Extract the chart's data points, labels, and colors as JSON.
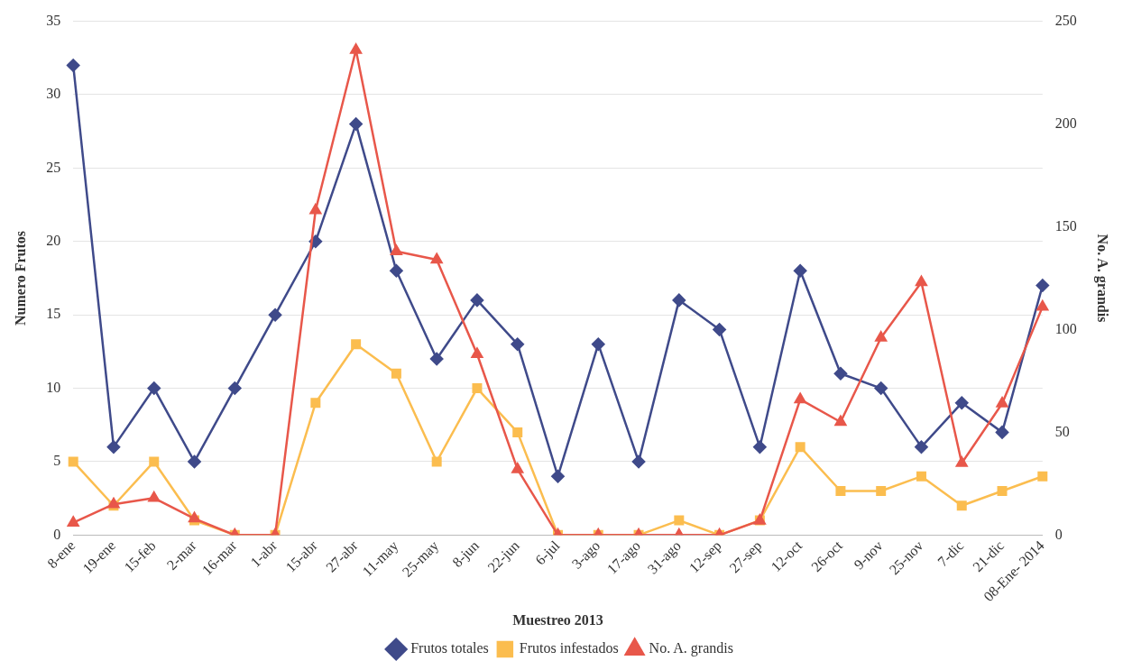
{
  "chart_data": {
    "type": "line",
    "xlabel": "Muestreo 2013",
    "ylabel": "Numero Frutos",
    "y2label": "No. A. grandis",
    "categories": [
      "8-ene",
      "19-ene",
      "15-feb",
      "2-mar",
      "16-mar",
      "1-abr",
      "15-abr",
      "27-abr",
      "11-may",
      "25-may",
      "8-jun",
      "22-jun",
      "6-jul",
      "3-ago",
      "17-ago",
      "31-ago",
      "12-sep",
      "27-sep",
      "12-oct",
      "26-oct",
      "9-nov",
      "25-nov",
      "7-dic",
      "21-dic",
      "08-Ene- 2014"
    ],
    "series": [
      {
        "name": "Frutos totales",
        "color": "#3f4a8a",
        "marker": "diamond",
        "values": [
          32,
          6,
          10,
          5,
          10,
          15,
          20,
          28,
          18,
          12,
          16,
          13,
          4,
          13,
          5,
          16,
          14,
          6,
          18,
          11,
          10,
          6,
          9,
          7,
          17
        ]
      },
      {
        "name": "Frutos infestados",
        "color": "#fbbd4f",
        "marker": "square",
        "values": [
          5,
          2,
          5,
          1,
          0,
          0,
          9,
          13,
          11,
          5,
          10,
          7,
          0,
          0,
          0,
          1,
          0,
          1,
          6,
          3,
          3,
          4,
          2,
          3,
          4
        ]
      },
      {
        "name": "No. A. grandis",
        "color": "#e8574a",
        "marker": "triangle",
        "axis": "y2",
        "values": [
          6,
          15,
          18,
          8,
          0,
          0,
          158,
          236,
          138,
          134,
          88,
          32,
          0,
          0,
          0,
          0,
          0,
          7,
          66,
          55,
          96,
          123,
          35,
          64,
          111
        ]
      }
    ],
    "ylim": [
      0,
      35
    ],
    "yticks": [
      0,
      5,
      10,
      15,
      20,
      25,
      30,
      35
    ],
    "y2lim": [
      0,
      250
    ],
    "y2ticks": [
      0,
      50,
      100,
      150,
      200,
      250
    ],
    "grid": "y",
    "legend": "bottom"
  }
}
